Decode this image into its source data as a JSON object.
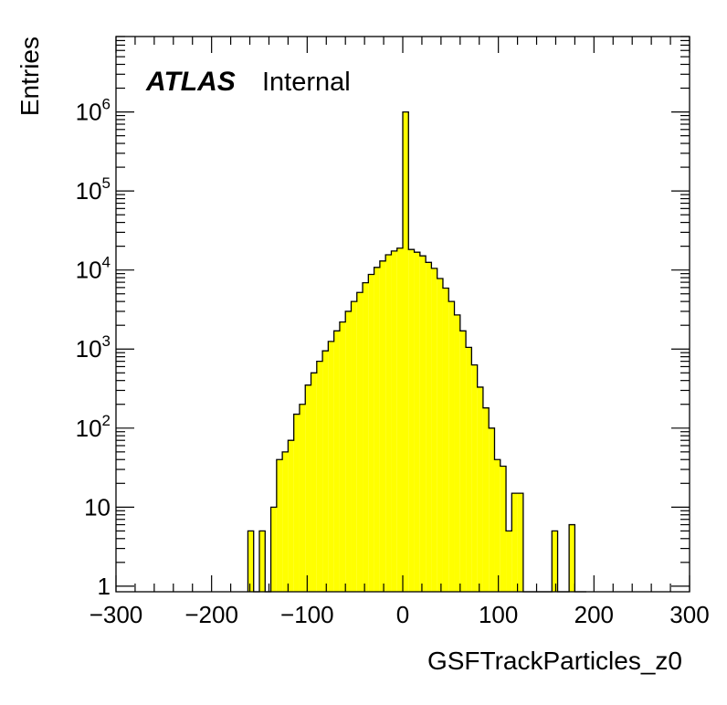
{
  "chart_data": {
    "type": "bar",
    "title": "",
    "xlabel": "GSFTrackParticles_z0",
    "ylabel": "Entries",
    "xlim": [
      -300,
      300
    ],
    "ylim": [
      0.85,
      9000000
    ],
    "y_scale": "log",
    "grid": false,
    "legend": "none",
    "label_main": "ATLAS",
    "label_sub": "Internal",
    "x_ticks": [
      {
        "value": -300,
        "label": "−300"
      },
      {
        "value": -200,
        "label": "−200"
      },
      {
        "value": -100,
        "label": "−100"
      },
      {
        "value": 0,
        "label": "0"
      },
      {
        "value": 100,
        "label": "100"
      },
      {
        "value": 200,
        "label": "200"
      },
      {
        "value": 300,
        "label": "300"
      }
    ],
    "y_ticks": [
      {
        "value": 1,
        "label": "1",
        "exp": ""
      },
      {
        "value": 10,
        "label": "10",
        "exp": ""
      },
      {
        "value": 100,
        "label": "10",
        "exp": "2"
      },
      {
        "value": 1000,
        "label": "10",
        "exp": "3"
      },
      {
        "value": 10000,
        "label": "10",
        "exp": "4"
      },
      {
        "value": 100000,
        "label": "10",
        "exp": "5"
      },
      {
        "value": 1000000,
        "label": "10",
        "exp": "6"
      }
    ],
    "bin_width": 6,
    "bin_lows": [
      -162,
      -156,
      -150,
      -144,
      -138,
      -132,
      -126,
      -120,
      -114,
      -108,
      -102,
      -96,
      -90,
      -84,
      -78,
      -72,
      -66,
      -60,
      -54,
      -48,
      -42,
      -36,
      -30,
      -24,
      -18,
      -12,
      -6,
      0,
      6,
      12,
      18,
      24,
      30,
      36,
      42,
      48,
      54,
      60,
      66,
      72,
      78,
      84,
      90,
      96,
      102,
      108,
      114,
      120,
      126,
      132,
      138,
      144,
      150,
      156,
      162,
      168,
      174,
      180,
      186
    ],
    "values": [
      5,
      0,
      5,
      0,
      10,
      40,
      50,
      70,
      150,
      200,
      350,
      500,
      700,
      950,
      1250,
      1700,
      2200,
      3000,
      4000,
      5200,
      6900,
      8800,
      10800,
      13000,
      15600,
      17400,
      18900,
      1000000,
      18200,
      16800,
      15100,
      12500,
      10500,
      7800,
      5900,
      4000,
      2700,
      1700,
      1050,
      630,
      330,
      180,
      100,
      40,
      33,
      5,
      15,
      15,
      0,
      0,
      0,
      0,
      0,
      5,
      0,
      0,
      6,
      0,
      0
    ],
    "bar_color": "#ffff00",
    "line_color": "#000000"
  }
}
